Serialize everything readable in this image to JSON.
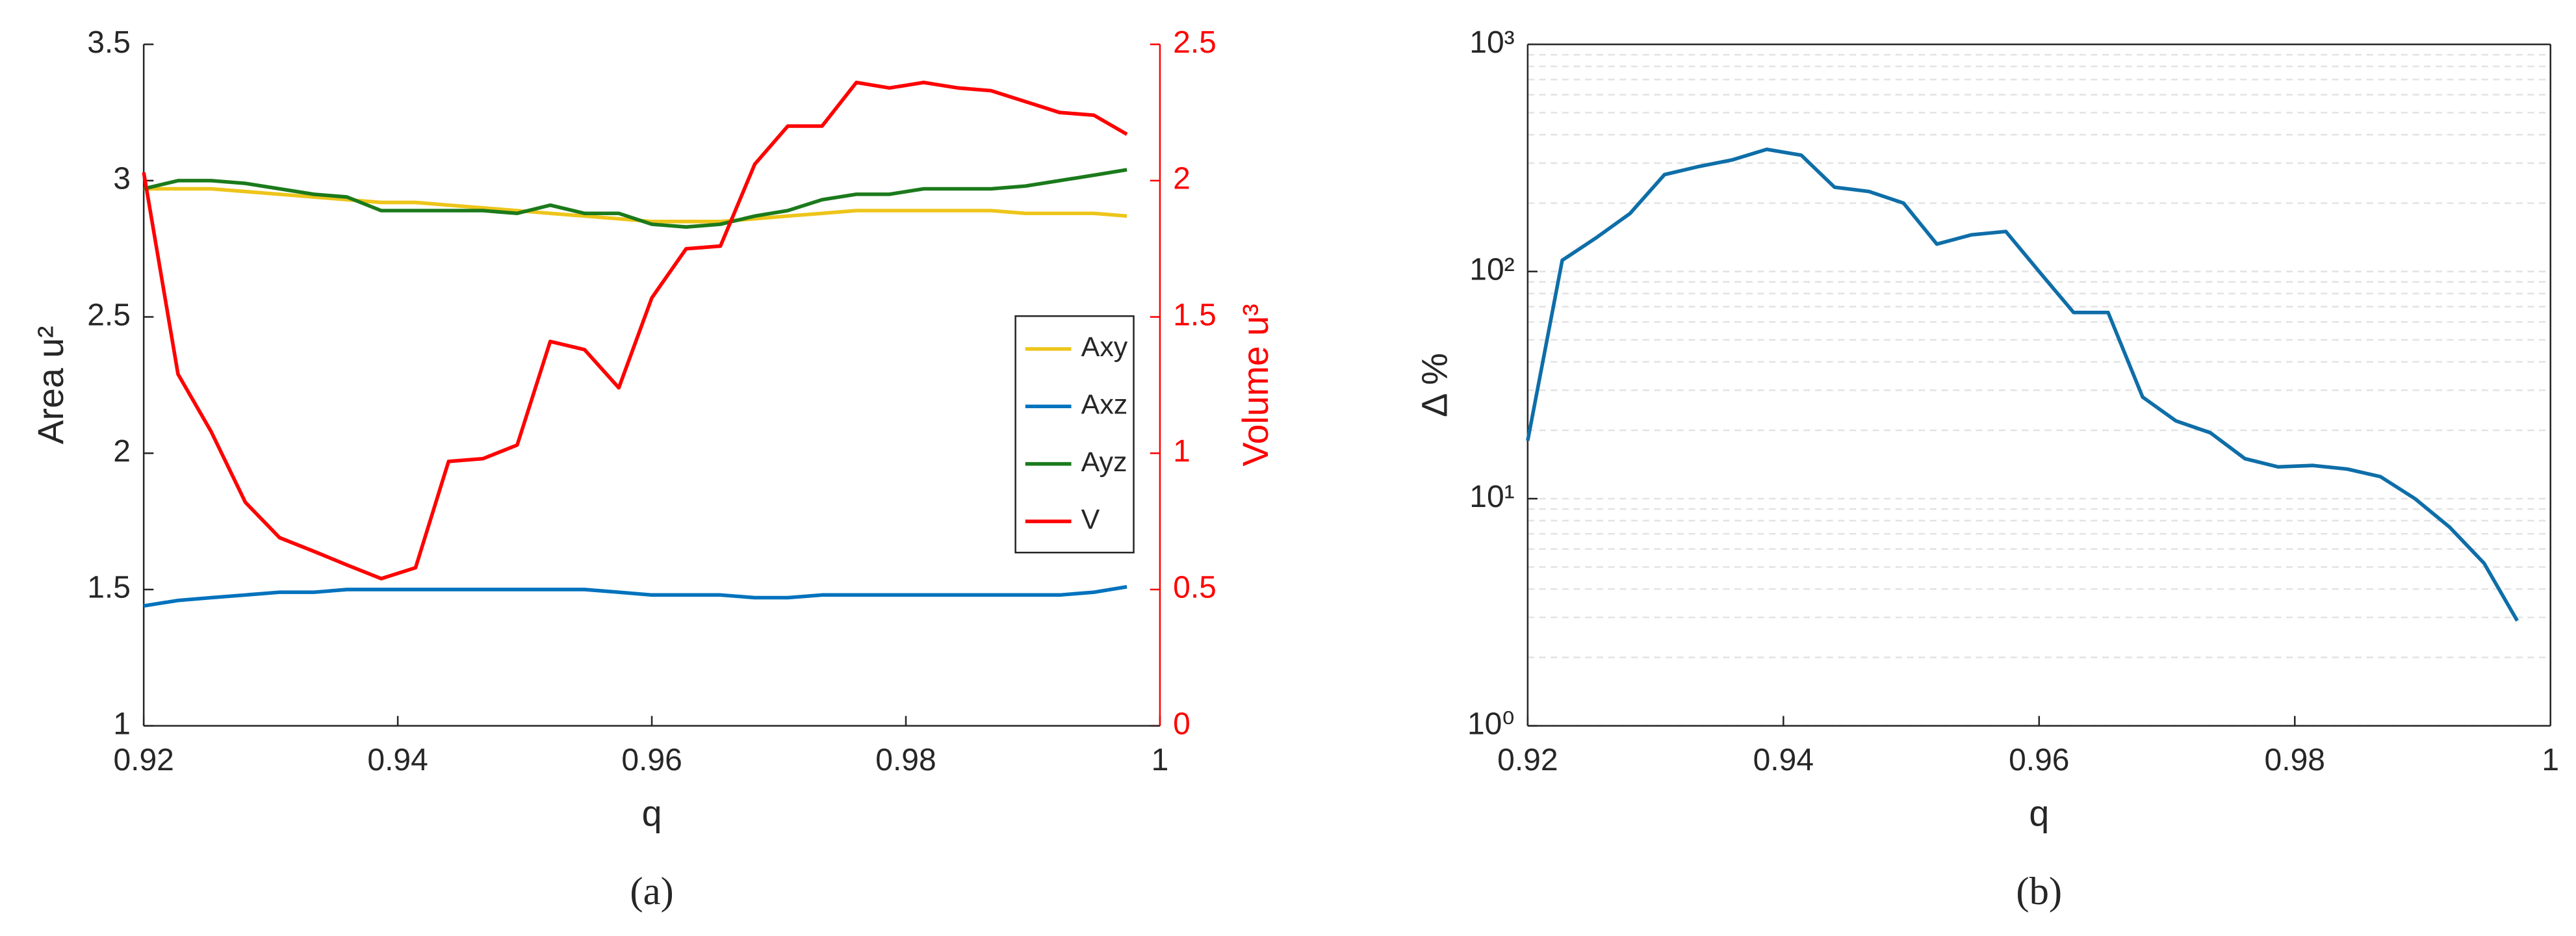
{
  "chart_data": [
    {
      "type": "line",
      "caption": "(a)",
      "xlabel": "q",
      "ylabel": "Area u²",
      "y2label": "Volume u³",
      "x": [
        0.92,
        0.9227,
        0.9253,
        0.928,
        0.9307,
        0.9334,
        0.936,
        0.9387,
        0.9414,
        0.944,
        0.9467,
        0.9494,
        0.952,
        0.9547,
        0.9574,
        0.96,
        0.9627,
        0.9654,
        0.9681,
        0.9707,
        0.9734,
        0.9761,
        0.9787,
        0.9814,
        0.9841,
        0.9867,
        0.9894,
        0.9921,
        0.9948,
        0.9974
      ],
      "xlim": [
        0.92,
        1
      ],
      "xticks": [
        0.92,
        0.94,
        0.96,
        0.98,
        1
      ],
      "ylim": [
        1,
        3.5
      ],
      "yticks": [
        1,
        1.5,
        2,
        2.5,
        3,
        3.5
      ],
      "y2lim": [
        0,
        2.5
      ],
      "y2ticks": [
        0,
        0.5,
        1,
        1.5,
        2,
        2.5
      ],
      "y2color": "#ff0000",
      "legend": "right",
      "grid": false,
      "series": [
        {
          "name": "Axy",
          "color": "#edc51a",
          "values": [
            2.97,
            2.97,
            2.97,
            2.96,
            2.95,
            2.94,
            2.93,
            2.92,
            2.92,
            2.91,
            2.9,
            2.89,
            2.88,
            2.87,
            2.86,
            2.85,
            2.85,
            2.85,
            2.86,
            2.87,
            2.88,
            2.89,
            2.89,
            2.89,
            2.89,
            2.89,
            2.88,
            2.88,
            2.88,
            2.87
          ]
        },
        {
          "name": "Axz",
          "color": "#0072bd",
          "values": [
            1.44,
            1.46,
            1.47,
            1.48,
            1.49,
            1.49,
            1.5,
            1.5,
            1.5,
            1.5,
            1.5,
            1.5,
            1.5,
            1.5,
            1.49,
            1.48,
            1.48,
            1.48,
            1.47,
            1.47,
            1.48,
            1.48,
            1.48,
            1.48,
            1.48,
            1.48,
            1.48,
            1.48,
            1.49,
            1.51
          ]
        },
        {
          "name": "Ayz",
          "color": "#1b7a1b",
          "values": [
            2.97,
            3.0,
            3.0,
            2.99,
            2.97,
            2.95,
            2.94,
            2.89,
            2.89,
            2.89,
            2.89,
            2.88,
            2.91,
            2.88,
            2.88,
            2.84,
            2.83,
            2.84,
            2.87,
            2.89,
            2.93,
            2.95,
            2.95,
            2.97,
            2.97,
            2.97,
            2.98,
            3.0,
            3.02,
            3.04
          ]
        },
        {
          "name": "V",
          "color": "#ff0000",
          "axis": "y2",
          "values": [
            2.03,
            1.29,
            1.08,
            0.82,
            0.69,
            0.64,
            0.59,
            0.54,
            0.58,
            0.97,
            0.98,
            1.03,
            1.41,
            1.38,
            1.24,
            1.57,
            1.75,
            1.76,
            2.06,
            2.2,
            2.2,
            2.36,
            2.34,
            2.36,
            2.34,
            2.33,
            2.29,
            2.25,
            2.24,
            2.17
          ]
        }
      ]
    },
    {
      "type": "line",
      "caption": "(b)",
      "xlabel": "q",
      "ylabel": "Δ %",
      "log_y": true,
      "grid": true,
      "x": [
        0.92,
        0.9227,
        0.9253,
        0.928,
        0.9307,
        0.9334,
        0.936,
        0.9387,
        0.9414,
        0.944,
        0.9467,
        0.9494,
        0.952,
        0.9547,
        0.9574,
        0.96,
        0.9627,
        0.9654,
        0.9681,
        0.9707,
        0.9734,
        0.9761,
        0.9787,
        0.9814,
        0.9841,
        0.9867,
        0.9894,
        0.9921,
        0.9948,
        0.9974
      ],
      "xlim": [
        0.92,
        1
      ],
      "xticks": [
        0.92,
        0.94,
        0.96,
        0.98,
        1
      ],
      "ylim": [
        1,
        1000
      ],
      "yticks": [
        {
          "value": 1,
          "label": "10⁰"
        },
        {
          "value": 10,
          "label": "10¹"
        },
        {
          "value": 100,
          "label": "10²"
        },
        {
          "value": 1000,
          "label": "10³"
        }
      ],
      "series": [
        {
          "color": "#0e6ea8",
          "values": [
            18,
            112,
            140,
            180,
            267,
            290,
            310,
            345,
            325,
            235,
            225,
            200,
            132,
            145,
            150,
            100,
            66,
            66,
            28,
            22,
            19.5,
            15,
            13.8,
            14,
            13.5,
            12.5,
            10,
            7.5,
            5.2,
            2.9
          ]
        }
      ]
    }
  ]
}
